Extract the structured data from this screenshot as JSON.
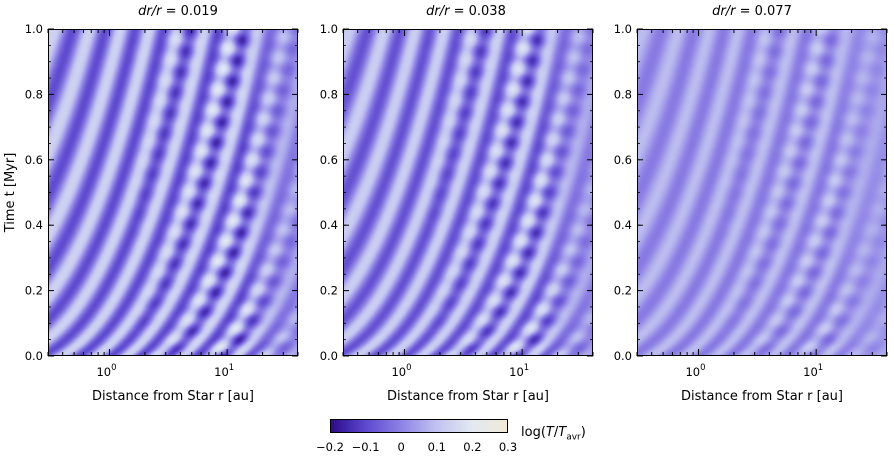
{
  "chart_data": [
    {
      "type": "heatmap",
      "title": "dr/r = 0.019",
      "title_parts": {
        "italic": "dr/r",
        "rest": " = 0.019"
      },
      "xlabel": "Distance from Star  r [au]",
      "ylabel": "Time  t  [Myr]",
      "xscale": "log",
      "xlim": [
        0.3,
        40
      ],
      "ylim": [
        0.0,
        1.0
      ],
      "xticks": [
        {
          "value": 1,
          "label": "10^0"
        },
        {
          "value": 10,
          "label": "10^1"
        }
      ],
      "yticks": [
        "0.0",
        "0.2",
        "0.4",
        "0.6",
        "0.8",
        "1.0"
      ],
      "value_range": [
        -0.2,
        0.3
      ],
      "wave_strength": 1.0
    },
    {
      "type": "heatmap",
      "title": "dr/r = 0.038",
      "title_parts": {
        "italic": "dr/r",
        "rest": " = 0.038"
      },
      "xlabel": "Distance from Star  r [au]",
      "ylabel": "",
      "xscale": "log",
      "xlim": [
        0.3,
        40
      ],
      "ylim": [
        0.0,
        1.0
      ],
      "xticks": [
        {
          "value": 1,
          "label": "10^0"
        },
        {
          "value": 10,
          "label": "10^1"
        }
      ],
      "yticks": [
        "0.0",
        "0.2",
        "0.4",
        "0.6",
        "0.8",
        "1.0"
      ],
      "value_range": [
        -0.2,
        0.3
      ],
      "wave_strength": 0.9
    },
    {
      "type": "heatmap",
      "title": "dr/r = 0.077",
      "title_parts": {
        "italic": "dr/r",
        "rest": " = 0.077"
      },
      "xlabel": "Distance from Star  r [au]",
      "ylabel": "",
      "xscale": "log",
      "xlim": [
        0.3,
        40
      ],
      "ylim": [
        0.0,
        1.0
      ],
      "xticks": [
        {
          "value": 1,
          "label": "10^0"
        },
        {
          "value": 10,
          "label": "10^1"
        }
      ],
      "yticks": [
        "0.0",
        "0.2",
        "0.4",
        "0.6",
        "0.8",
        "1.0"
      ],
      "value_range": [
        -0.2,
        0.3
      ],
      "wave_strength": 0.55
    }
  ],
  "colorbar": {
    "label": "log(T/T_avr)",
    "ticks": [
      "−0.2",
      "−0.1",
      "0",
      "0.1",
      "0.2",
      "0.3"
    ],
    "colors": [
      "#2e0d8c",
      "#5f4bd0",
      "#8f84e6",
      "#c2c4f0",
      "#e3e9f3",
      "#f1ead6"
    ]
  }
}
